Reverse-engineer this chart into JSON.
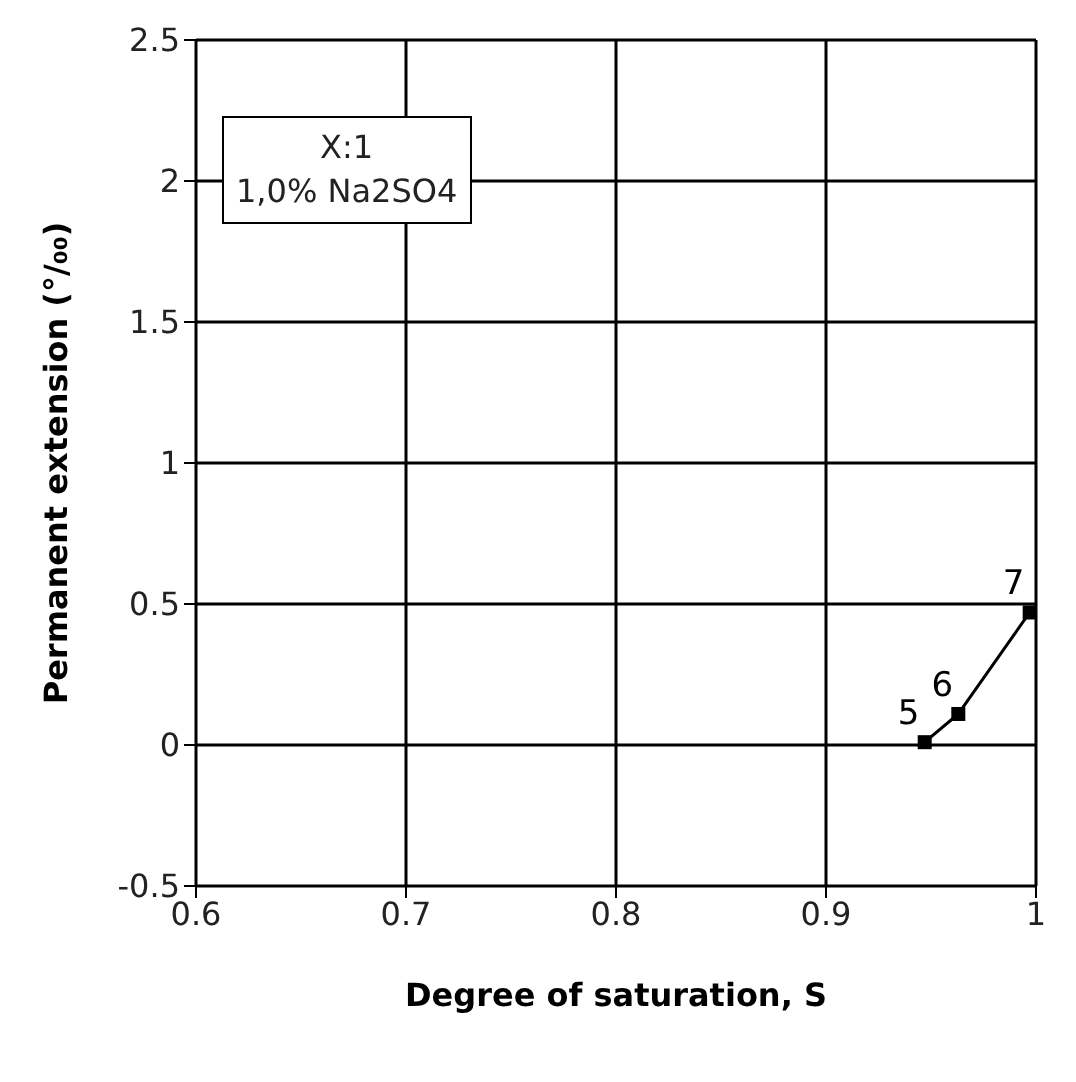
{
  "chart_data": {
    "type": "line",
    "xlabel": "Degree of saturation, S",
    "ylabel": "Permanent extension (°/₀₀)",
    "x": [
      0.947,
      0.963,
      0.997
    ],
    "series": [
      {
        "color": "#000000",
        "values": [
          0.01,
          0.11,
          0.47
        ]
      }
    ],
    "xlim": [
      0.6,
      1
    ],
    "xticks": [
      0.6,
      0.7,
      0.8,
      0.9,
      1
    ],
    "ylim": [
      -0.5,
      2.5
    ],
    "yticks": [
      -0.5,
      0,
      0.5,
      1,
      1.5,
      2,
      2.5
    ],
    "grid": true,
    "legend": false,
    "marker": "square",
    "line_style": "solid",
    "annotations": [
      "X:1",
      "1,0% Na2SO4",
      {
        "text": "5",
        "x": 0.947,
        "y": 0.01
      },
      {
        "text": "6",
        "x": 0.963,
        "y": 0.11
      },
      {
        "text": "7",
        "x": 0.997,
        "y": 0.47
      }
    ]
  }
}
